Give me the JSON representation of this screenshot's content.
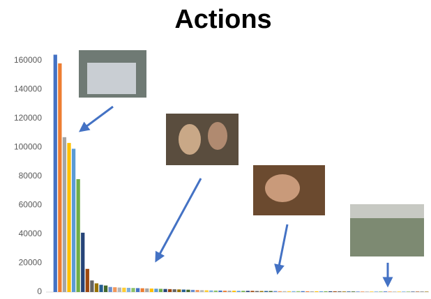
{
  "chart_data": {
    "type": "bar",
    "title": "Actions",
    "values": [
      164000,
      158000,
      107000,
      103000,
      99000,
      78000,
      41000,
      16000,
      8000,
      6000,
      5000,
      4500,
      3500,
      3300,
      3100,
      3000,
      2900,
      2800,
      2700,
      2600,
      2500,
      2400,
      2300,
      2200,
      2100,
      2000,
      1900,
      1800,
      1700,
      1600,
      1500,
      1400,
      1300,
      1200,
      1100,
      1000,
      1000,
      900,
      900,
      900,
      800,
      800,
      800,
      800,
      700,
      700,
      700,
      700,
      700,
      600,
      600,
      600,
      600,
      600,
      600,
      500,
      500,
      500,
      500,
      500,
      500,
      500,
      500,
      400,
      400,
      400,
      400,
      400,
      400,
      400,
      400,
      400,
      400,
      300,
      300,
      300,
      300,
      300,
      300,
      300,
      300,
      300
    ],
    "colors": [
      "#4472c4",
      "#ed7d31",
      "#a5a5a5",
      "#ffc000",
      "#5b9bd5",
      "#70ad47",
      "#264478",
      "#9e480e",
      "#636363",
      "#997300",
      "#255e91",
      "#43682b",
      "#698ed0",
      "#f1975a",
      "#b7b7b7",
      "#ffcd33",
      "#7cafdd",
      "#8cc168"
    ],
    "ylim": [
      0,
      170000
    ],
    "yticks": [
      0,
      20000,
      40000,
      60000,
      80000,
      100000,
      120000,
      140000,
      160000
    ],
    "grid": false
  }
}
